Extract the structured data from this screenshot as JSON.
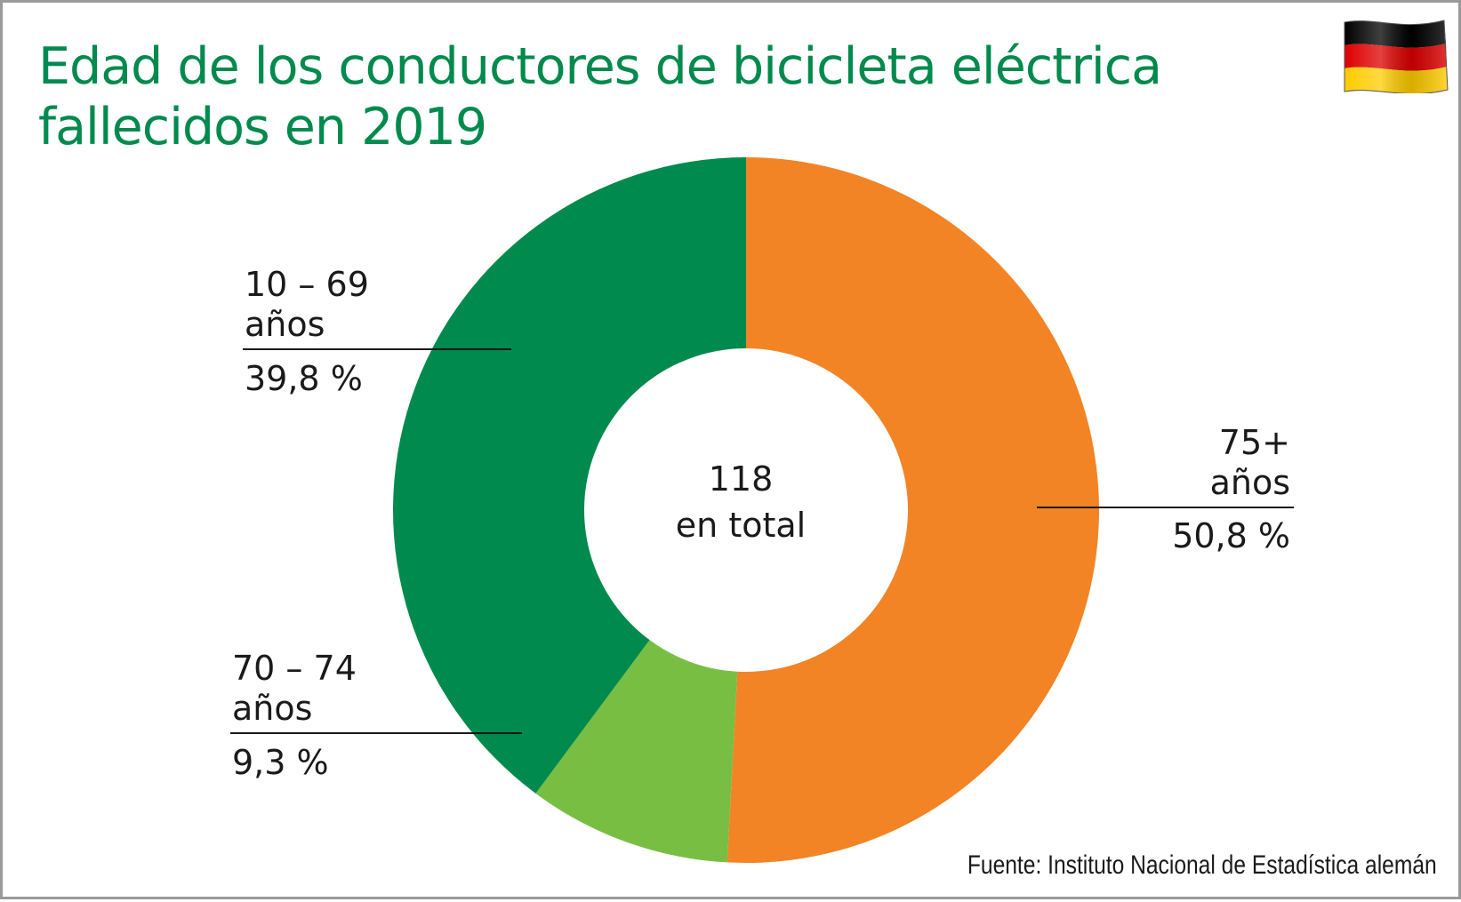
{
  "chart_data": {
    "type": "pie",
    "title": [
      "Edad de los conductores de bicicleta eléctrica",
      "fallecidos en 2019"
    ],
    "center": {
      "value": "118",
      "label": "en total"
    },
    "slices": [
      {
        "name_line1": "75+",
        "name_line2": "años",
        "value": 50.8,
        "value_label": "50,8 %",
        "color": "#f28425"
      },
      {
        "name_line1": "70 – 74",
        "name_line2": "años",
        "value": 9.3,
        "value_label": "9,3 %",
        "color": "#78be43"
      },
      {
        "name_line1": "10 – 69",
        "name_line2": "años",
        "value": 39.8,
        "value_label": "39,8 %",
        "color": "#008a4d"
      }
    ],
    "source": "Fuente: Instituto Nacional de Estadística alemán"
  },
  "colors": {
    "title": "#008a4d",
    "flag_black": "#000000",
    "flag_red": "#dd0000",
    "flag_gold": "#ffcc00"
  },
  "icons": {
    "flag": "germany-flag-icon"
  }
}
